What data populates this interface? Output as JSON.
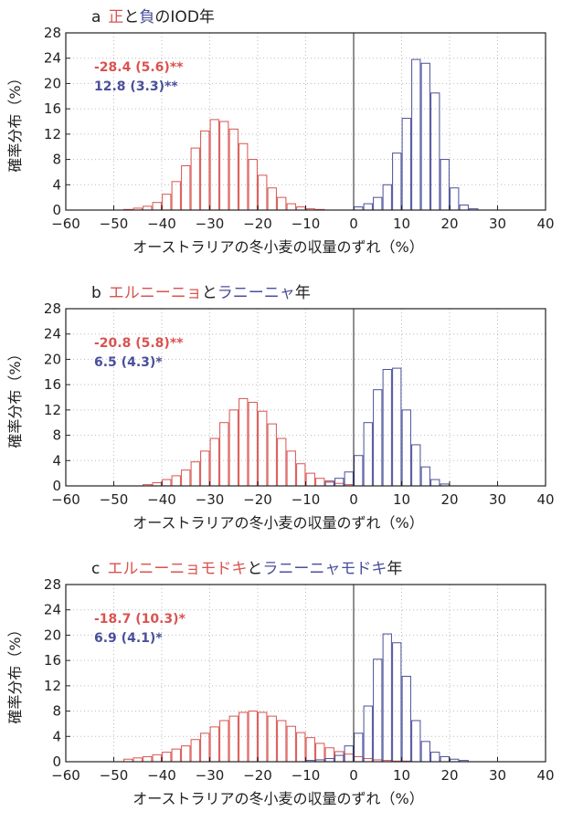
{
  "colors": {
    "positive": "#d9534f",
    "negative": "#4a4f9a",
    "axis": "#222222",
    "grid": "#bbbbbb"
  },
  "chart_data": [
    {
      "type": "bar",
      "panel_letter": "a",
      "title_parts": [
        {
          "text": "正",
          "color": "#d9534f"
        },
        {
          "text": "と",
          "color": "#222222"
        },
        {
          "text": "負",
          "color": "#4a4f9a"
        },
        {
          "text": "のIOD年",
          "color": "#222222"
        }
      ],
      "xlabel": "オーストラリアの冬小麦の収量のずれ（%）",
      "ylabel": "確率分布（%）",
      "xlim": [
        -60,
        40
      ],
      "ylim": [
        0,
        28
      ],
      "xticks": [
        -60,
        -50,
        -40,
        -30,
        -20,
        -10,
        0,
        10,
        20,
        30,
        40
      ],
      "yticks": [
        0,
        4,
        8,
        12,
        16,
        20,
        24,
        28
      ],
      "grid": true,
      "bin_width": 2,
      "series": [
        {
          "stat": "-28.4 (5.6)**",
          "bins": [
            -47,
            -45,
            -43,
            -41,
            -39,
            -37,
            -35,
            -33,
            -31,
            -29,
            -27,
            -25,
            -23,
            -21,
            -19,
            -17,
            -15,
            -13,
            -11,
            -9,
            -7
          ],
          "values": [
            0.1,
            0.3,
            0.6,
            1.2,
            2.5,
            4.5,
            7.0,
            9.8,
            12.5,
            14.3,
            14.0,
            12.8,
            10.5,
            8.0,
            5.5,
            3.5,
            2.0,
            1.0,
            0.5,
            0.2,
            0.1
          ]
        },
        {
          "stat": "12.8 (3.3)**",
          "bins": [
            1,
            3,
            5,
            7,
            9,
            11,
            13,
            15,
            17,
            19,
            21,
            23,
            25
          ],
          "values": [
            0.5,
            1.0,
            2.0,
            4.0,
            9.0,
            14.5,
            23.8,
            23.2,
            18.5,
            8.0,
            3.5,
            0.8,
            0.2
          ]
        }
      ]
    },
    {
      "type": "bar",
      "panel_letter": "b",
      "title_parts": [
        {
          "text": "エルニーニョ",
          "color": "#d9534f"
        },
        {
          "text": "と",
          "color": "#222222"
        },
        {
          "text": "ラニーニャ",
          "color": "#4a4f9a"
        },
        {
          "text": "年",
          "color": "#222222"
        }
      ],
      "xlabel": "オーストラリアの冬小麦の収量のずれ（%）",
      "ylabel": "確率分布（%）",
      "xlim": [
        -60,
        40
      ],
      "ylim": [
        0,
        28
      ],
      "xticks": [
        -60,
        -50,
        -40,
        -30,
        -20,
        -10,
        0,
        10,
        20,
        30,
        40
      ],
      "yticks": [
        0,
        4,
        8,
        12,
        16,
        20,
        24,
        28
      ],
      "grid": true,
      "bin_width": 2,
      "series": [
        {
          "stat": "-20.8 (5.8)**",
          "bins": [
            -43,
            -41,
            -39,
            -37,
            -35,
            -33,
            -31,
            -29,
            -27,
            -25,
            -23,
            -21,
            -19,
            -17,
            -15,
            -13,
            -11,
            -9,
            -7,
            -5,
            -3,
            -1
          ],
          "values": [
            0.2,
            0.5,
            1.0,
            1.6,
            2.5,
            3.8,
            5.5,
            7.5,
            10.0,
            12.0,
            13.8,
            13.2,
            11.8,
            9.8,
            7.5,
            5.5,
            3.5,
            2.0,
            1.2,
            0.8,
            0.4,
            0.2
          ]
        },
        {
          "stat": "6.5 (4.3)*",
          "bins": [
            -5,
            -3,
            -1,
            1,
            3,
            5,
            7,
            9,
            11,
            13,
            15,
            17,
            19
          ],
          "values": [
            0.6,
            1.2,
            2.2,
            4.8,
            10.0,
            15.2,
            18.4,
            18.6,
            12.0,
            6.5,
            3.0,
            1.0,
            0.3
          ]
        }
      ]
    },
    {
      "type": "bar",
      "panel_letter": "c",
      "title_parts": [
        {
          "text": "エルニーニョモドキ",
          "color": "#d9534f"
        },
        {
          "text": "と",
          "color": "#222222"
        },
        {
          "text": "ラニーニャモドキ",
          "color": "#4a4f9a"
        },
        {
          "text": "年",
          "color": "#222222"
        }
      ],
      "xlabel": "オーストラリアの冬小麦の収量のずれ（%）",
      "ylabel": "確率分布（%）",
      "xlim": [
        -60,
        40
      ],
      "ylim": [
        0,
        28
      ],
      "xticks": [
        -60,
        -50,
        -40,
        -30,
        -20,
        -10,
        0,
        10,
        20,
        30,
        40
      ],
      "yticks": [
        0,
        4,
        8,
        12,
        16,
        20,
        24,
        28
      ],
      "grid": true,
      "bin_width": 2,
      "series": [
        {
          "stat": "-18.7 (10.3)*",
          "bins": [
            -47,
            -45,
            -43,
            -41,
            -39,
            -37,
            -35,
            -33,
            -31,
            -29,
            -27,
            -25,
            -23,
            -21,
            -19,
            -17,
            -15,
            -13,
            -11,
            -9,
            -7,
            -5,
            -3,
            -1,
            1,
            3,
            5,
            7,
            9,
            11
          ],
          "values": [
            0.4,
            0.6,
            0.8,
            1.1,
            1.5,
            2.0,
            2.5,
            3.5,
            4.5,
            5.5,
            6.5,
            7.2,
            7.8,
            8.0,
            7.8,
            7.2,
            6.5,
            5.6,
            4.6,
            3.8,
            2.9,
            2.2,
            1.6,
            1.2,
            0.8,
            0.5,
            0.3,
            0.2,
            0.1,
            0.1
          ]
        },
        {
          "stat": "6.9 (4.1)*",
          "bins": [
            -9,
            -7,
            -5,
            -3,
            -1,
            1,
            3,
            5,
            7,
            9,
            11,
            13,
            15,
            17,
            19,
            21,
            23
          ],
          "values": [
            0.2,
            0.3,
            0.5,
            1.0,
            2.5,
            4.5,
            8.8,
            16.2,
            20.2,
            18.8,
            13.5,
            6.5,
            3.2,
            1.5,
            0.8,
            0.4,
            0.2
          ]
        }
      ]
    }
  ]
}
